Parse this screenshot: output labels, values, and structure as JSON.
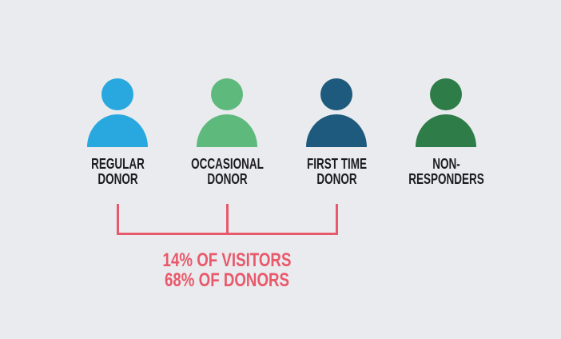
{
  "canvas": {
    "background": "#eaebee",
    "label_text_color": "#1d1d1f"
  },
  "figures": [
    {
      "icon": "person-icon",
      "color": "#29a8e0",
      "label_line1": "REGULAR",
      "label_line2": "DONOR"
    },
    {
      "icon": "person-icon",
      "color": "#5eb97c",
      "label_line1": "OCCASIONAL",
      "label_line2": "DONOR"
    },
    {
      "icon": "person-icon",
      "color": "#1d5a7d",
      "label_line1": "FIRST TIME",
      "label_line2": "DONOR"
    },
    {
      "icon": "person-icon",
      "color": "#2e7c47",
      "label_line1": "NON-",
      "label_line2": "RESPONDERS"
    }
  ],
  "bracket": {
    "color": "#e8596b"
  },
  "caption": {
    "color": "#e8596b",
    "line1": "14% OF VISITORS",
    "line2": "68% OF DONORS"
  }
}
